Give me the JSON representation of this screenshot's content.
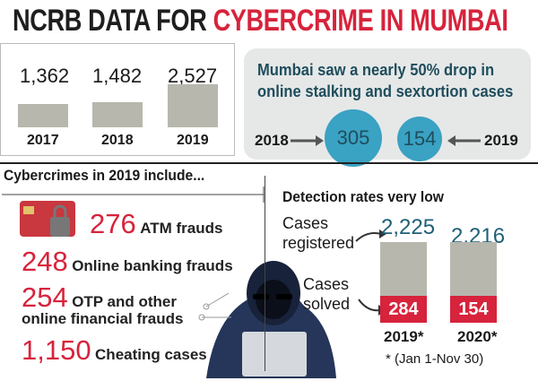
{
  "title": {
    "part1": "NCRB DATA FOR ",
    "part2": "CYBERCRIME IN MUMBAI"
  },
  "yearly": {
    "years": [
      "2017",
      "2018",
      "2019"
    ],
    "values": [
      "1,362",
      "1,482",
      "2,527"
    ]
  },
  "drop": {
    "text_line1": "Mumbai saw a nearly 50% drop in",
    "text_line2": "online stalking and sextortion cases",
    "year_left": "2018",
    "value_left": "305",
    "value_right": "154",
    "year_right": "2019"
  },
  "crimes": {
    "heading": "Cybercrimes in 2019 include...",
    "atm": {
      "num": "276",
      "label": "ATM frauds"
    },
    "online": {
      "num": "248",
      "label": "Online banking frauds"
    },
    "otp": {
      "num": "254",
      "label": "OTP and other",
      "label2": "online financial frauds"
    },
    "cheating": {
      "num": "1,150",
      "label": "Cheating cases"
    }
  },
  "detection": {
    "heading": "Detection rates very low",
    "registered_label1": "Cases",
    "registered_label2": "registered",
    "solved_label1": "Cases",
    "solved_label2": "solved",
    "years": [
      "2019*",
      "2020*"
    ],
    "registered": [
      "2,225",
      "2,216"
    ],
    "solved": [
      "284",
      "154"
    ],
    "footnote": "* (Jan 1-Nov 30)"
  },
  "chart_data": [
    {
      "type": "bar",
      "categories": [
        "2017",
        "2018",
        "2019"
      ],
      "values": [
        1362,
        1482,
        2527
      ]
    },
    {
      "type": "bar",
      "categories": [
        "2019*",
        "2020*"
      ],
      "series": [
        {
          "name": "Cases registered",
          "values": [
            2225,
            2216
          ]
        },
        {
          "name": "Cases solved",
          "values": [
            284,
            154
          ]
        }
      ]
    }
  ],
  "colors": {
    "accent_red": "#d7233c",
    "circle_blue": "#3aa2c3",
    "bar_grey": "#b7b7ad"
  }
}
